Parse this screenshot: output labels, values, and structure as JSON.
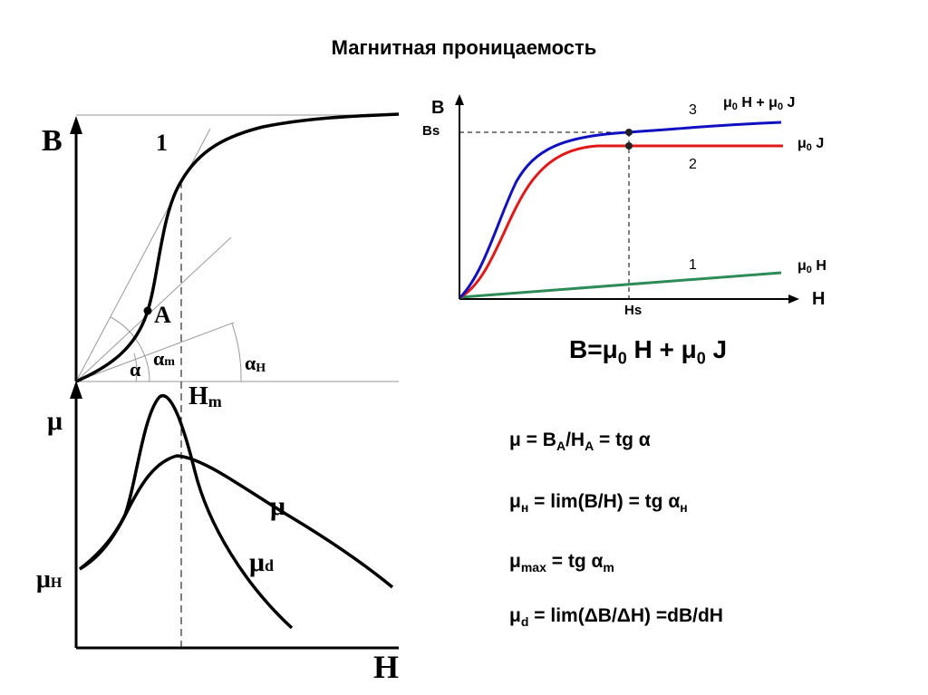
{
  "title": "Магнитная проницаемость",
  "left_diagram": {
    "y_axis_top": "B",
    "x_axis": "H",
    "curve_label": "1",
    "point_label": "A",
    "hm_label": "H",
    "hm_sub": "m",
    "angle_alpha": "α",
    "angle_alpha_m": "α",
    "angle_alpha_m_sub": "m",
    "angle_alpha_h": "α",
    "angle_alpha_h_sub": "H",
    "y_axis_bottom": "μ",
    "mu_h": "μ",
    "mu_h_sub": "H",
    "curve_mu": "μ",
    "curve_mud": "μ",
    "curve_mud_sub": "d"
  },
  "right_diagram": {
    "y_axis": "B",
    "x_axis": "H",
    "bs": "Bs",
    "hs": "Hs",
    "curve1_num": "1",
    "curve2_num": "2",
    "curve3_num": "3",
    "label3_a": "μ",
    "label3_a_sub": "0",
    "label3_b": " H + μ",
    "label3_b_sub": "0",
    "label3_c": " J",
    "label2_a": "μ",
    "label2_a_sub": "0",
    "label2_b": " J",
    "label1_a": "μ",
    "label1_a_sub": "0",
    "label1_b": " H",
    "colors": {
      "curve1": "#2e8b57",
      "curve2": "#e01818",
      "curve3": "#1010c0"
    }
  },
  "main_formula": {
    "p1": "B=μ",
    "s1": "0",
    "p2": " H + μ",
    "s2": "0",
    "p3": " J"
  },
  "formulas": [
    {
      "p1": "μ = B",
      "s1": "A",
      "p2": "/H",
      "s2": "A",
      "p3": " = tg α"
    },
    {
      "p1": "μ",
      "s1": "н",
      "p2": " = lim(B/H) = tg α",
      "s2": "н"
    },
    {
      "p1": "μ",
      "s1": "max",
      "p2": " = tg α",
      "s2": "m"
    },
    {
      "p1": "μ",
      "s1": "d",
      "p2": " =  lim(ΔB/ΔH) =dB/dH"
    }
  ]
}
